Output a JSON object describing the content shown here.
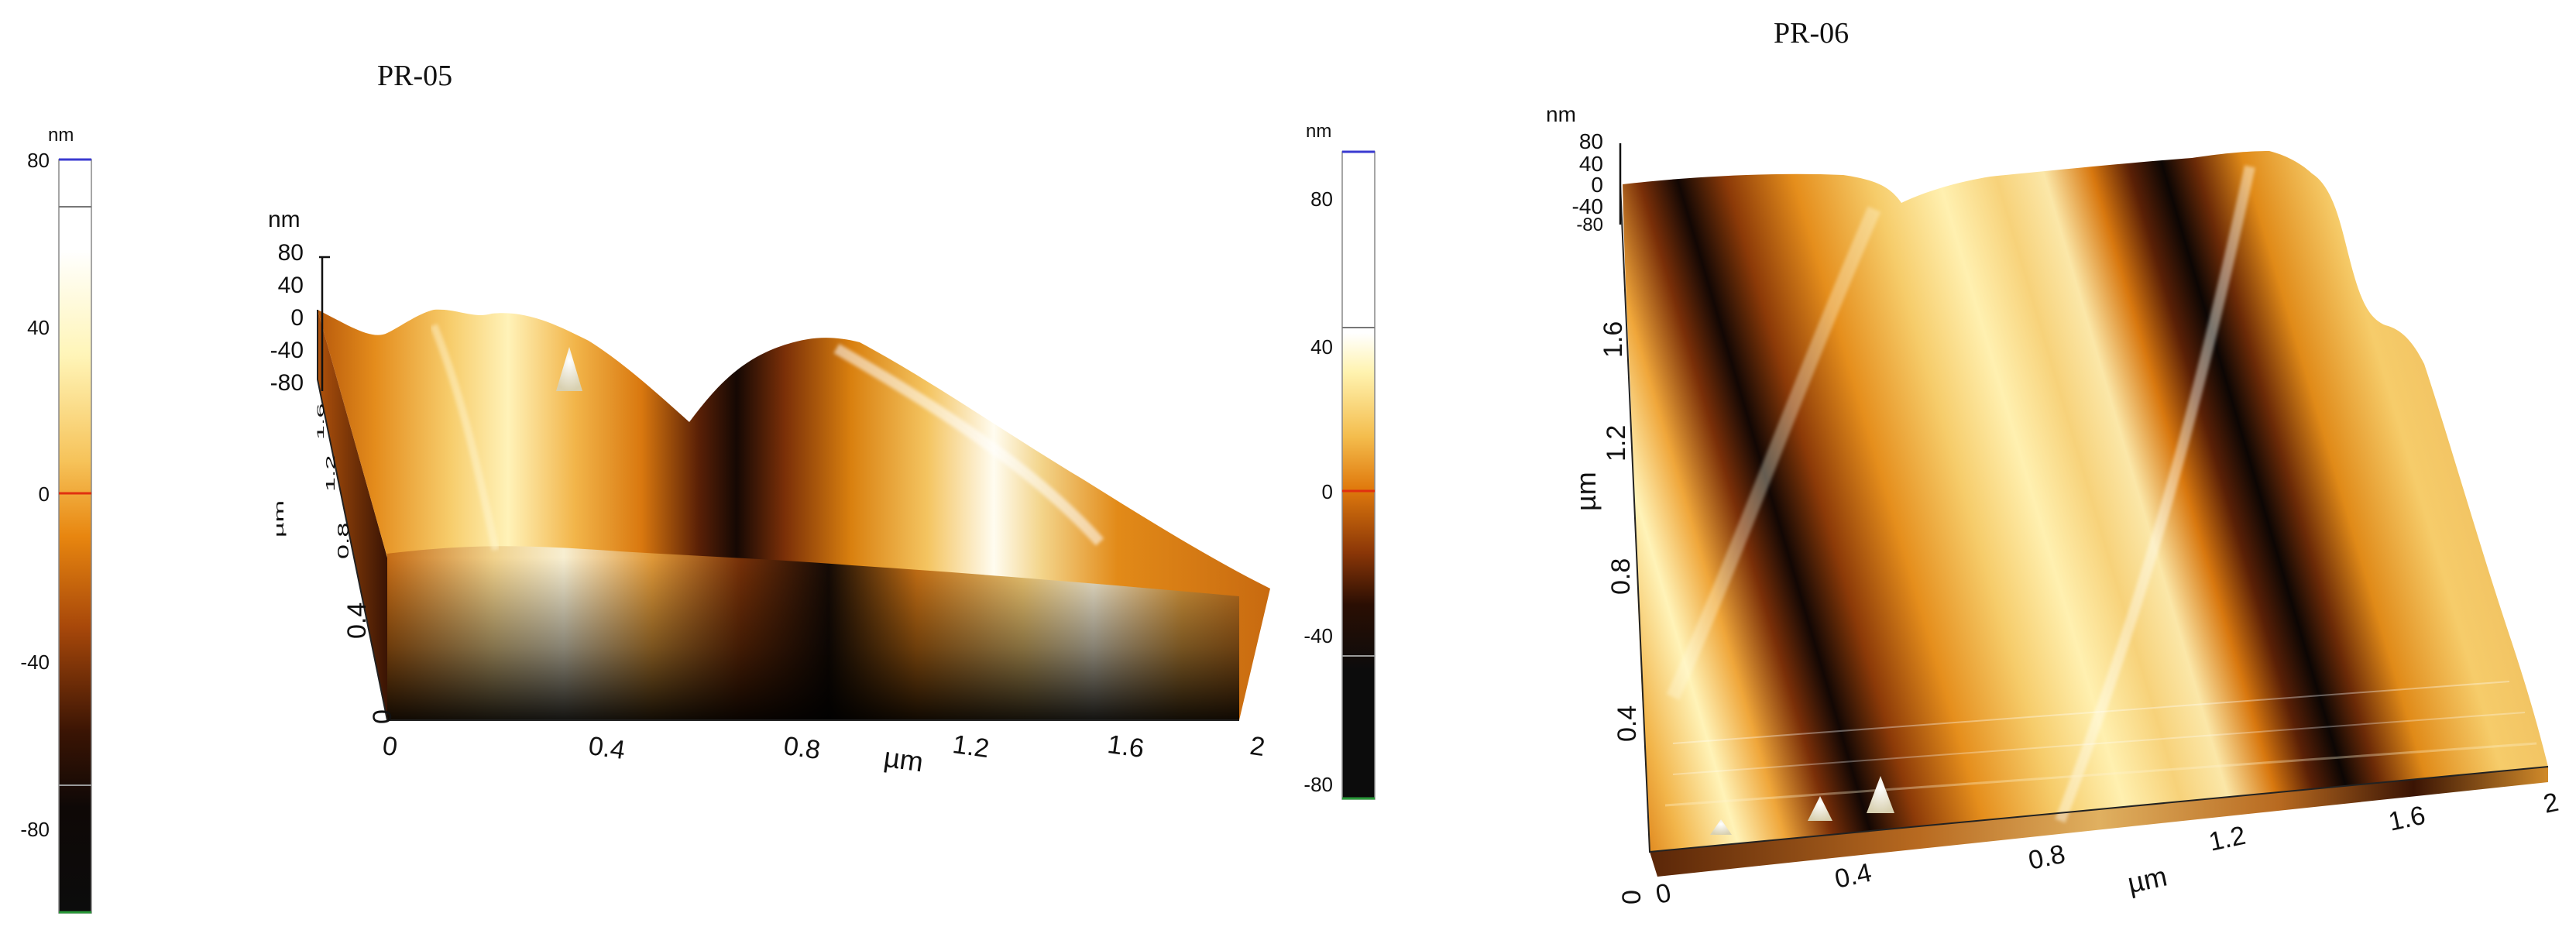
{
  "panels": [
    {
      "title": "PR-05",
      "colorbar": {
        "unit": "nm",
        "ticks": [
          "80",
          "40",
          "0",
          "-40",
          "-80"
        ]
      },
      "z_axis": {
        "unit": "nm",
        "ticks": [
          "80",
          "40",
          "0",
          "-40",
          "-80"
        ]
      },
      "x_axis": {
        "unit": "µm",
        "ticks": [
          "0",
          "0.4",
          "0.8",
          "1.2",
          "1.6",
          "2"
        ]
      },
      "y_axis": {
        "unit": "µm",
        "ticks": [
          "0",
          "0.4",
          "0.8",
          "1.2",
          "1.6"
        ]
      }
    },
    {
      "title": "PR-06",
      "colorbar": {
        "unit": "nm",
        "ticks": [
          "80",
          "40",
          "0",
          "-40",
          "-80"
        ]
      },
      "z_axis": {
        "unit": "nm",
        "ticks": [
          "80",
          "40",
          "0",
          "-40",
          "-80"
        ]
      },
      "x_axis": {
        "unit": "µm",
        "ticks": [
          "0",
          "0.4",
          "0.8",
          "1.2",
          "1.6",
          "2"
        ]
      },
      "y_axis": {
        "unit": "µm",
        "ticks": [
          "0",
          "0.4",
          "0.8",
          "1.2",
          "1.6"
        ]
      }
    }
  ],
  "colors": {
    "dark": "#140904",
    "brown": "#7a2f08",
    "orange": "#d8760f",
    "light_orange": "#f2b94a",
    "cream": "#fff3b8",
    "white": "#fffdf4",
    "cb_top_marker": "#3a3ad0",
    "cb_zero_marker": "#e03010",
    "cb_bottom_marker": "#2a9a3a"
  }
}
